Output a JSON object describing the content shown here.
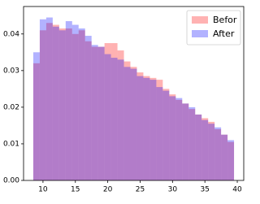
{
  "chart_data": {
    "type": "histogram",
    "bins": [
      8.5,
      9.5,
      10.5,
      11.5,
      12.5,
      13.5,
      14.5,
      15.5,
      16.5,
      17.5,
      18.5,
      19.5,
      20.5,
      21.5,
      22.5,
      23.5,
      24.5,
      25.5,
      26.5,
      27.5,
      28.5,
      29.5,
      30.5,
      31.5,
      32.5,
      33.5,
      34.5,
      35.5,
      36.5,
      37.5,
      38.5,
      39.5
    ],
    "series": [
      {
        "name": "Befor",
        "color": "#ff0000",
        "values": [
          0.032,
          0.041,
          0.043,
          0.0425,
          0.0415,
          0.0415,
          0.04,
          0.041,
          0.038,
          0.0365,
          0.0365,
          0.0375,
          0.0375,
          0.0355,
          0.0325,
          0.031,
          0.0295,
          0.0285,
          0.028,
          0.0275,
          0.025,
          0.0235,
          0.022,
          0.021,
          0.0195,
          0.018,
          0.017,
          0.016,
          0.014,
          0.0125,
          0.0105
        ]
      },
      {
        "name": "After",
        "color": "#0000ff",
        "values": [
          0.035,
          0.044,
          0.0445,
          0.042,
          0.041,
          0.0435,
          0.0425,
          0.0415,
          0.0395,
          0.037,
          0.0365,
          0.0345,
          0.0335,
          0.033,
          0.031,
          0.0305,
          0.0285,
          0.028,
          0.0275,
          0.0255,
          0.0245,
          0.023,
          0.0225,
          0.021,
          0.02,
          0.018,
          0.0165,
          0.0155,
          0.0145,
          0.0125,
          0.011
        ]
      }
    ],
    "opacity": 0.3,
    "xlim": [
      7,
      41
    ],
    "xticks": [
      10,
      15,
      20,
      25,
      30,
      35,
      40
    ],
    "ylim": [
      0,
      0.0475
    ],
    "yticks": [
      {
        "value": 0,
        "label": "0.00"
      },
      {
        "value": 0.01,
        "label": "0.01"
      },
      {
        "value": 0.02,
        "label": "0.02"
      },
      {
        "value": 0.03,
        "label": "0.03"
      },
      {
        "value": 0.04,
        "label": "0.04"
      }
    ],
    "legend": "upper right"
  }
}
